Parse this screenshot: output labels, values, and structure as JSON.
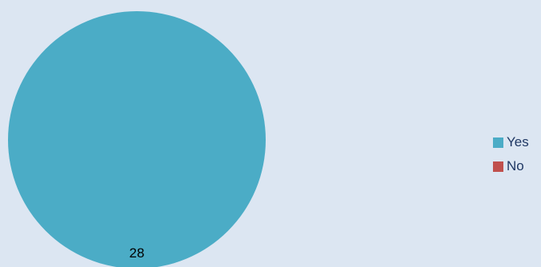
{
  "chart_data": {
    "type": "pie",
    "title": "",
    "categories": [
      "Yes",
      "No"
    ],
    "values": [
      28,
      0
    ],
    "colors": [
      "#4bacc6",
      "#c0504d"
    ],
    "data_labels": [
      "28",
      ""
    ],
    "legend_position": "right",
    "grid": false
  },
  "legend": {
    "items": [
      {
        "label": "Yes",
        "color": "#4bacc6"
      },
      {
        "label": "No",
        "color": "#c0504d"
      }
    ]
  }
}
